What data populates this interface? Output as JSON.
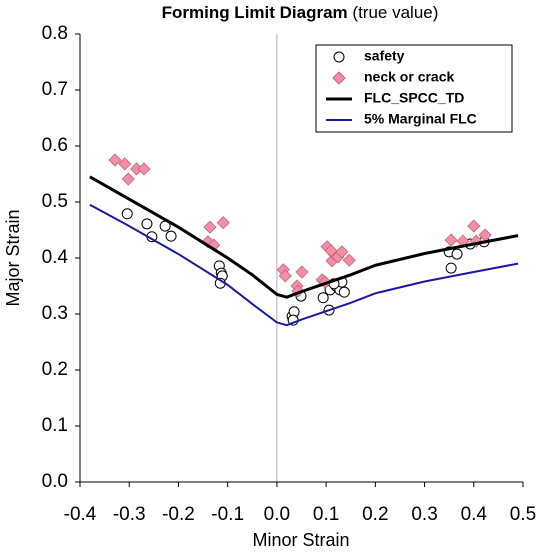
{
  "chart_data": {
    "type": "scatter",
    "title": "Forming Limit Diagram",
    "subtitle": "(true value)",
    "x_label": "Minor Strain",
    "y_label": "Major Strain",
    "xlim": [
      -0.4,
      0.5
    ],
    "ylim": [
      0,
      0.8
    ],
    "xticks": [
      -0.4,
      -0.3,
      -0.2,
      -0.1,
      {
        "value": 0,
        "label": "0.0"
      },
      0.1,
      0.2,
      0.3,
      0.4,
      0.5
    ],
    "yticks": [
      {
        "value": 0,
        "label": "0.0"
      },
      0.1,
      0.2,
      0.3,
      0.4,
      0.5,
      0.6,
      0.7,
      0.8
    ],
    "zero_line": true,
    "legend": "upper right",
    "series": [
      {
        "name": "safety",
        "marker": "circle",
        "color": "#ffffff",
        "x": [
          -0.304,
          -0.264,
          -0.254,
          -0.227,
          -0.215,
          -0.117,
          -0.113,
          -0.111,
          -0.115,
          0.031,
          0.035,
          0.033,
          0.049,
          0.094,
          0.106,
          0.108,
          0.12,
          0.128,
          0.137,
          0.132,
          0.116,
          0.35,
          0.354,
          0.366,
          0.393,
          0.421
        ],
        "values": [
          0.479,
          0.461,
          0.438,
          0.457,
          0.439,
          0.386,
          0.373,
          0.368,
          0.355,
          0.296,
          0.304,
          0.289,
          0.332,
          0.329,
          0.307,
          0.343,
          0.35,
          0.343,
          0.339,
          0.357,
          0.354,
          0.411,
          0.382,
          0.407,
          0.425,
          0.429
        ]
      },
      {
        "name": "neck or crack",
        "marker": "diamond",
        "color": "#f08fa6",
        "x": [
          -0.329,
          -0.309,
          -0.302,
          -0.285,
          -0.27,
          -0.136,
          -0.109,
          -0.14,
          -0.128,
          0.013,
          0.017,
          0.041,
          0.043,
          0.051,
          0.092,
          0.098,
          0.102,
          0.112,
          0.116,
          0.124,
          0.132,
          0.11,
          0.147,
          0.354,
          0.378,
          0.4,
          0.405,
          0.423
        ],
        "values": [
          0.575,
          0.568,
          0.541,
          0.559,
          0.559,
          0.455,
          0.463,
          0.429,
          0.423,
          0.379,
          0.368,
          0.35,
          0.341,
          0.375,
          0.361,
          0.357,
          0.42,
          0.395,
          0.407,
          0.402,
          0.411,
          0.413,
          0.396,
          0.432,
          0.43,
          0.457,
          0.43,
          0.441
        ]
      },
      {
        "name": "FLC_SPCC_TD",
        "marker": "line",
        "color": "#000000",
        "line_width": 3,
        "x": [
          -0.38,
          -0.3,
          -0.2,
          -0.1,
          -0.05,
          0,
          0.02,
          0.05,
          0.1,
          0.15,
          0.2,
          0.3,
          0.4,
          0.49
        ],
        "values": [
          0.545,
          0.505,
          0.455,
          0.4,
          0.37,
          0.335,
          0.33,
          0.34,
          0.355,
          0.37,
          0.387,
          0.408,
          0.425,
          0.44
        ]
      },
      {
        "name": "5% Marginal FLC",
        "marker": "line",
        "color": "#1a1aa0",
        "line_width": 2,
        "x": [
          -0.38,
          -0.3,
          -0.2,
          -0.1,
          -0.05,
          0,
          0.02,
          0.05,
          0.1,
          0.15,
          0.2,
          0.3,
          0.4,
          0.49
        ],
        "values": [
          0.495,
          0.457,
          0.407,
          0.352,
          0.318,
          0.285,
          0.28,
          0.29,
          0.305,
          0.32,
          0.337,
          0.358,
          0.375,
          0.39
        ]
      }
    ]
  }
}
